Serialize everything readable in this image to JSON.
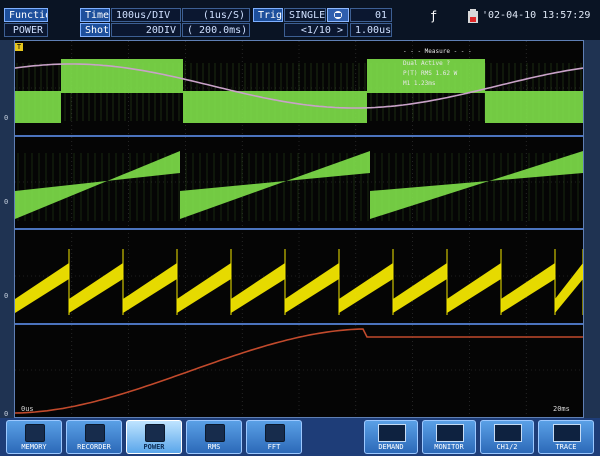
{
  "header": {
    "function_label": "Function",
    "function_value": "POWER",
    "time_label": "Time",
    "time_value": "100us/DIV",
    "time_extra": "(1us/S)",
    "shot_label": "Shot",
    "shot_value": "20DIV",
    "shot_extra": "( 200.0ms)",
    "trig_label": "Trig",
    "trig_mode": "SINGLE",
    "trig_count": "01",
    "trig_pos": "<1/10 >",
    "trig_time": "1.00us",
    "datetime": "'02-04-10 13:57:29"
  },
  "scope": {
    "trigger_marker": "T",
    "time_start": "0us",
    "time_end": "20ms",
    "measure_title": "- - - Measure - - -",
    "measure_lines": [
      "Dual Active ?",
      "P(T) RMS 1.62 W",
      "M1 1.23ms"
    ],
    "channel_markers": [
      "0",
      "0",
      "0",
      "0"
    ],
    "traces": [
      {
        "name": "green-square-wave",
        "color": "#7fe04a"
      },
      {
        "name": "green-sawtooth",
        "color": "#7fe04a"
      },
      {
        "name": "yellow-sawtooth",
        "color": "#f2e600"
      },
      {
        "name": "red-integral",
        "color": "#c24a2c"
      },
      {
        "name": "pink-sine",
        "color": "#c9a2c8"
      }
    ]
  },
  "toolbar": {
    "buttons": [
      {
        "label": "MEMORY",
        "icon": "memory-icon"
      },
      {
        "label": "RECORDER",
        "icon": "recorder-icon"
      },
      {
        "label": "POWER",
        "icon": "power-icon",
        "active": true
      },
      {
        "label": "RMS",
        "icon": "rms-icon"
      },
      {
        "label": "FFT",
        "icon": "fft-icon"
      },
      {
        "label": "DEMAND",
        "icon": "demand-icon"
      },
      {
        "label": "MONITOR",
        "icon": "monitor-icon"
      },
      {
        "label": "CH1/2",
        "icon": "channel-icon"
      },
      {
        "label": "TRACE",
        "icon": "trace-icon"
      }
    ]
  }
}
